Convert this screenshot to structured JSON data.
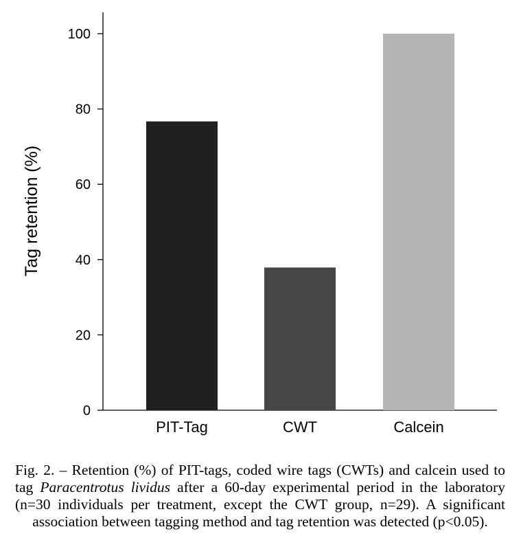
{
  "chart_data": {
    "type": "bar",
    "categories": [
      "PIT-Tag",
      "CWT",
      "Calcein"
    ],
    "values": [
      76.7,
      37.9,
      100
    ],
    "colors": [
      "#202020",
      "#464646",
      "#b5b5b5"
    ],
    "ylabel": "Tag retention (%)",
    "xlabel": "",
    "ylim": [
      0,
      100
    ],
    "yticks": [
      0,
      20,
      40,
      60,
      80,
      100
    ],
    "grid": false
  },
  "caption": {
    "part1": "Fig. 2. – Retention (%) of PIT-tags, coded wire tags (CWTs) and calcein used to tag ",
    "species": "Paracentrotus lividus",
    "part2": " after a 60-day experimental period in the laboratory (n=30 individuals per treatment, except the CWT group, n=29). A significant association between tagging method and tag retention was detected (p<0.05)."
  }
}
